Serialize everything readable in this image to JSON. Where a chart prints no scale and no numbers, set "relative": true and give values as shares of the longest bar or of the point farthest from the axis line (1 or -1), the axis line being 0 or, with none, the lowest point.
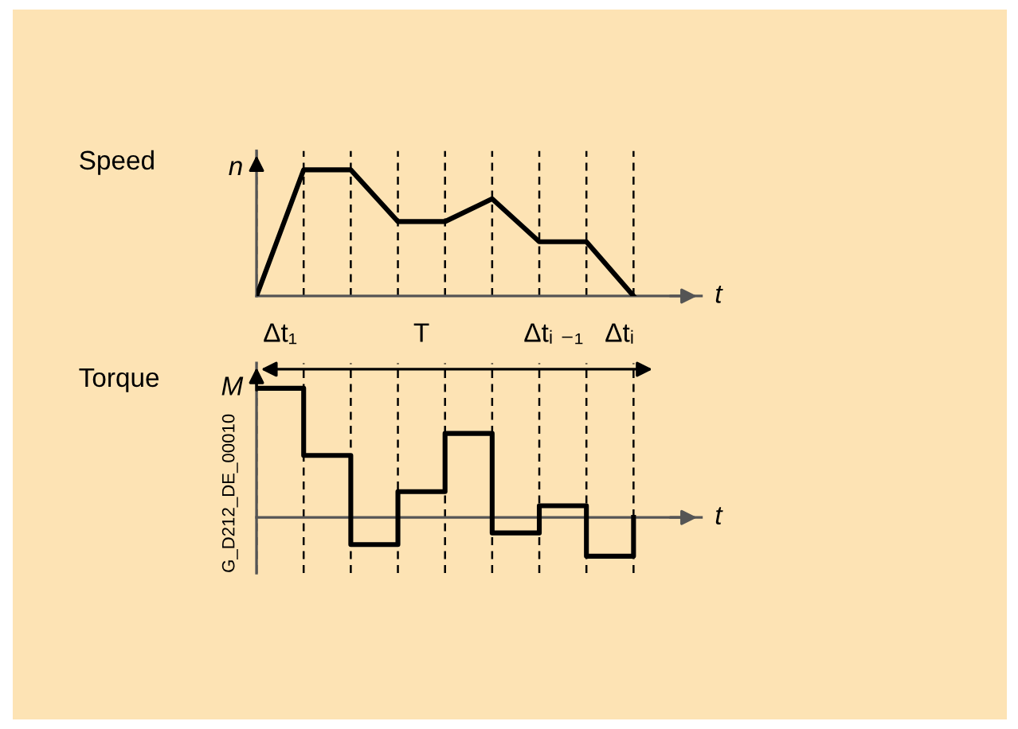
{
  "chart_data": [
    {
      "type": "line",
      "title": "Speed",
      "ylabel": "n",
      "xlabel": "t",
      "relative": true,
      "grid": "x",
      "marker": "none",
      "line_style": "solid",
      "categories": [
        null,
        null,
        null,
        null,
        null,
        null,
        null,
        null,
        null
      ],
      "series": [
        {
          "color": "#000000",
          "values": [
            0,
            1,
            1,
            0.59,
            0.59,
            0.77,
            0.43,
            0.43,
            0
          ]
        }
      ],
      "annotations": [
        "Δt₁",
        "T",
        "Δtᵢ ₋₁",
        "Δtᵢ"
      ]
    },
    {
      "type": "step",
      "title": "Torque",
      "ylabel": "M",
      "xlabel": "t",
      "relative": true,
      "grid": "x",
      "marker": "none",
      "line_style": "solid",
      "categories": [
        null,
        null,
        null,
        null,
        null,
        null,
        null,
        null,
        null
      ],
      "series": [
        {
          "color": "#000000",
          "values": [
            1,
            0.48,
            -0.21,
            0.2,
            0.65,
            -0.12,
            0.09,
            -0.3,
            0
          ]
        }
      ],
      "annotations": [
        "G_D212_DE_00010"
      ]
    }
  ]
}
